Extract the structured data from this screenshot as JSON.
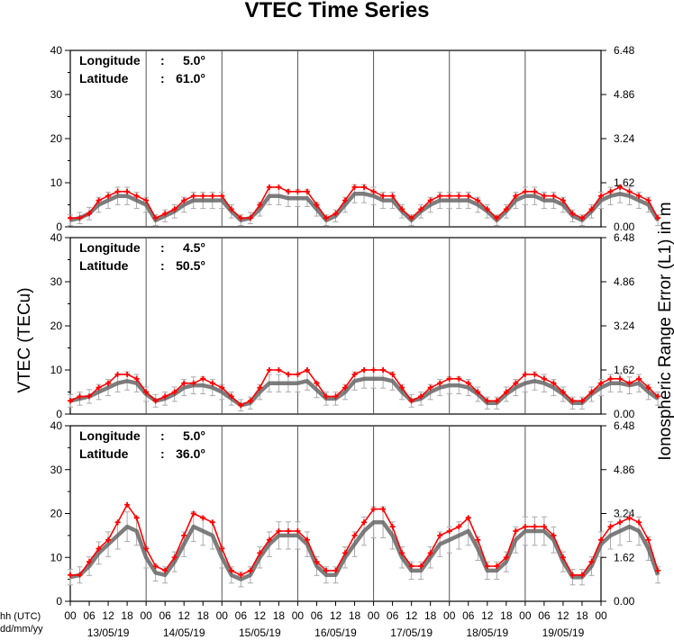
{
  "chart_data": {
    "type": "line",
    "title": "VTEC Time Series",
    "ylabel_left": "VTEC (TECu)",
    "ylabel_right": "Ionospheric Range Error (L1) in m",
    "corner_label_line1": "hh (UTC)",
    "corner_label_line2": "dd/mm/yy",
    "hour_ticks": [
      "00",
      "06",
      "12",
      "18",
      "00",
      "06",
      "12",
      "18",
      "00",
      "06",
      "12",
      "18",
      "00",
      "06",
      "12",
      "18",
      "00",
      "06",
      "12",
      "18",
      "00",
      "06",
      "12",
      "18",
      "00",
      "06",
      "12",
      "18",
      "00"
    ],
    "dates": [
      "13/05/19",
      "14/05/19",
      "15/05/19",
      "16/05/19",
      "17/05/19",
      "18/05/19",
      "19/05/19"
    ],
    "x_range_hours": [
      0,
      168
    ],
    "ylim": [
      0,
      40
    ],
    "y_ticks_left": [
      "0",
      "10",
      "20",
      "30",
      "40"
    ],
    "y_ticks_right": [
      "0.00",
      "1.62",
      "3.24",
      "4.86",
      "6.48"
    ],
    "colors": {
      "measured": "#ff0000",
      "model": "#666666",
      "errorbar": "#aaaaaa"
    },
    "series_x_step_hours": 3,
    "panels": [
      {
        "longitude_label": "Longitude",
        "longitude_value": "5.0°",
        "latitude_label": "Latitude",
        "latitude_value": "61.0°",
        "measured": [
          2,
          2,
          3,
          6,
          7,
          8,
          8,
          7,
          6,
          2,
          3,
          4,
          6,
          7,
          7,
          7,
          7,
          4,
          2,
          2,
          5,
          9,
          9,
          8,
          8,
          8,
          5,
          2,
          3,
          6,
          9,
          9,
          8,
          7,
          7,
          4,
          2,
          4,
          6,
          7,
          7,
          7,
          7,
          6,
          4,
          2,
          4,
          7,
          8,
          8,
          7,
          7,
          6,
          3,
          2,
          4,
          7,
          8,
          9,
          8,
          7,
          6,
          2
        ],
        "model": [
          1.5,
          2,
          3,
          5,
          6,
          7,
          7,
          6,
          5,
          1.5,
          2.5,
          3.5,
          5,
          6,
          6,
          6,
          6,
          3.5,
          1.5,
          2,
          4,
          7,
          7,
          6.5,
          6.5,
          6.5,
          4,
          1.5,
          2.5,
          5,
          7.5,
          7.5,
          7,
          6,
          6,
          3.5,
          1.5,
          3.5,
          5,
          6,
          6,
          6,
          6,
          5,
          3.5,
          1.5,
          3.5,
          6,
          7,
          7,
          6,
          6,
          5,
          2.5,
          1.5,
          3.5,
          6,
          7,
          7.5,
          7,
          6,
          5,
          1.5
        ]
      },
      {
        "longitude_label": "Longitude",
        "longitude_value": "4.5°",
        "latitude_label": "Latitude",
        "latitude_value": "50.5°",
        "measured": [
          3,
          4,
          4,
          6,
          7,
          9,
          9,
          8,
          5,
          3,
          4,
          5,
          7,
          7,
          8,
          7,
          6,
          4,
          2,
          3,
          6,
          10,
          10,
          9,
          9,
          10,
          7,
          4,
          4,
          6,
          9,
          10,
          10,
          10,
          9,
          6,
          3,
          4,
          6,
          7,
          8,
          8,
          7,
          5,
          3,
          3,
          5,
          7,
          9,
          9,
          8,
          7,
          5,
          3,
          3,
          5,
          7,
          8,
          8,
          7,
          8,
          6,
          4
        ],
        "model": [
          3,
          3.5,
          4,
          5,
          6,
          7,
          7.5,
          7,
          4.5,
          3,
          3.5,
          4.5,
          6,
          6.5,
          6.5,
          6,
          5,
          3.5,
          2,
          2.5,
          5,
          7,
          7,
          7,
          7,
          7.5,
          5.5,
          3.5,
          3.5,
          5,
          7.5,
          8,
          8,
          8,
          7.5,
          5,
          3,
          3.5,
          5,
          6,
          6.5,
          6.5,
          6,
          4.5,
          2.5,
          2.5,
          4.5,
          6,
          7,
          7.5,
          7,
          6,
          4.5,
          2.5,
          2.5,
          4.5,
          6,
          7,
          7,
          6.5,
          7,
          5,
          3.5
        ]
      },
      {
        "longitude_label": "Longitude",
        "longitude_value": "5.0°",
        "latitude_label": "Latitude",
        "latitude_value": "36.0°",
        "measured": [
          6,
          6,
          9,
          12,
          14,
          18,
          22,
          19,
          12,
          8,
          7,
          10,
          15,
          20,
          19,
          18,
          12,
          7,
          6,
          7,
          11,
          14,
          16,
          16,
          16,
          14,
          9,
          7,
          7,
          11,
          15,
          18,
          21,
          21,
          17,
          11,
          8,
          8,
          11,
          15,
          16,
          17,
          19,
          14,
          8,
          8,
          10,
          16,
          17,
          17,
          17,
          15,
          10,
          6,
          6,
          9,
          14,
          17,
          18,
          19,
          18,
          14,
          7
        ],
        "model": [
          5.5,
          6,
          8,
          11,
          13,
          15,
          17,
          16,
          10,
          6.5,
          6,
          9,
          13,
          17,
          16,
          15,
          10,
          6,
          5,
          6,
          10,
          13,
          15,
          15,
          15,
          13,
          8,
          6,
          6,
          10,
          13,
          16,
          18,
          18,
          15,
          10,
          7,
          7,
          10,
          13,
          14,
          15,
          16,
          12,
          7,
          7,
          9,
          14,
          16,
          16,
          16,
          14,
          9,
          5.5,
          5.5,
          8,
          13,
          15,
          16,
          17,
          16,
          12,
          6
        ]
      }
    ]
  }
}
